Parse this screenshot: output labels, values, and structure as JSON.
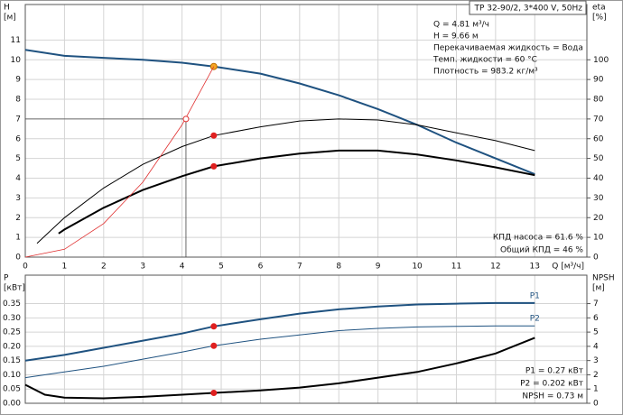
{
  "chart_data": [
    {
      "type": "line",
      "title": "TP 32-90/2, 3*400 V, 50Hz",
      "y_label": [
        "H",
        "[м]"
      ],
      "y2_label": [
        "eta",
        "[%]"
      ],
      "x_label": "Q [м³/ч]",
      "xlim": [
        0,
        14.33
      ],
      "xticks": [
        0,
        1,
        2,
        3,
        4,
        5,
        6,
        7,
        8,
        9,
        10,
        11,
        12,
        13
      ],
      "ylim": [
        0,
        12.8
      ],
      "yticks": [
        0,
        1,
        2,
        3,
        4,
        5,
        6,
        7,
        8,
        9,
        10,
        11
      ],
      "y2lim": [
        0,
        128
      ],
      "y2ticks": [
        0,
        10,
        20,
        30,
        40,
        50,
        60,
        70,
        80,
        90,
        100
      ],
      "grid": true,
      "duty_x": 4.81,
      "notes": [
        "Q = 4.81 м³/ч",
        "H = 9.66 м",
        "Перекачиваемая жидкость = Вода",
        "Темп. жидкости = 60 °C",
        "Плотность = 983.2 кг/м³"
      ],
      "notes_bottom": [
        "КПД насоса = 61.6 %",
        "Общий КПД = 46 %"
      ],
      "guide": {
        "x": 4.1,
        "y": 7,
        "color": "#e03030"
      },
      "series": [
        {
          "color": "#1f5280",
          "width": 2,
          "marker_color": "#f5a623",
          "x": [
            0,
            1,
            2,
            3,
            4,
            4.81,
            6,
            7,
            8,
            9,
            10,
            11,
            12,
            13
          ],
          "values": [
            10.5,
            10.2,
            10.1,
            10.0,
            9.85,
            9.66,
            9.3,
            8.8,
            8.2,
            7.5,
            6.7,
            5.8,
            5.0,
            4.2
          ]
        },
        {
          "color": "#000000",
          "width": 1,
          "axis": "y2",
          "marker_color": "#e02020",
          "x": [
            0.3,
            1,
            2,
            3,
            4,
            4.81,
            6,
            7,
            8,
            9,
            10,
            11,
            12,
            13
          ],
          "values": [
            7,
            20,
            35,
            47,
            56,
            61.6,
            66,
            69,
            70,
            69.5,
            67,
            63,
            59,
            54
          ]
        },
        {
          "color": "#000000",
          "width": 2,
          "axis": "y2",
          "marker_color": "#e02020",
          "x": [
            0.85,
            1,
            2,
            3,
            4,
            4.81,
            6,
            7,
            8,
            9,
            10,
            11,
            12,
            13
          ],
          "values": [
            12,
            14,
            25,
            34,
            41,
            46,
            50,
            52.5,
            54,
            54,
            52,
            49,
            45.5,
            41.5
          ]
        },
        {
          "color": "#e03030",
          "width": 0.8,
          "x": [
            0,
            1,
            2,
            3,
            4,
            4.81
          ],
          "values": [
            0,
            0.4,
            1.7,
            3.8,
            6.7,
            9.66
          ]
        }
      ]
    },
    {
      "type": "line",
      "y_label": [
        "P",
        "[кВт]"
      ],
      "y2_label": [
        "NPSH",
        "[м]"
      ],
      "xlim": [
        0,
        14.33
      ],
      "xticks": [
        0,
        1,
        2,
        3,
        4,
        5,
        6,
        7,
        8,
        9,
        10,
        11,
        12,
        13
      ],
      "ylim": [
        0,
        0.45
      ],
      "yticks": [
        {
          "value": 0,
          "label": "0.00"
        },
        {
          "value": 0.05,
          "label": "0.05"
        },
        {
          "value": 0.1,
          "label": "0.10"
        },
        {
          "value": 0.15,
          "label": "0.15"
        },
        {
          "value": 0.2,
          "label": "0.20"
        },
        {
          "value": 0.25,
          "label": "0.25"
        },
        {
          "value": 0.3,
          "label": "0.30"
        },
        {
          "value": 0.35,
          "label": "0.35"
        }
      ],
      "y2lim": [
        0,
        9
      ],
      "y2ticks": [
        0,
        1,
        2,
        3,
        4,
        5,
        6,
        7
      ],
      "grid": true,
      "duty_x": 4.81,
      "notes_bottom": [
        "P1 = 0.27 кВт",
        "P2 = 0.202 кВт",
        "NPSH = 0.73 м"
      ],
      "series": [
        {
          "name": "P1",
          "color": "#1f5280",
          "width": 2,
          "marker_color": "#e02020",
          "x": [
            0,
            1,
            2,
            3,
            4,
            4.81,
            6,
            7,
            8,
            9,
            10,
            11,
            12,
            13
          ],
          "values": [
            0.15,
            0.17,
            0.195,
            0.22,
            0.245,
            0.27,
            0.295,
            0.315,
            0.33,
            0.34,
            0.347,
            0.35,
            0.352,
            0.352
          ]
        },
        {
          "name": "P2",
          "color": "#1f5280",
          "width": 1,
          "marker_color": "#e02020",
          "x": [
            0,
            1,
            2,
            3,
            4,
            4.81,
            6,
            7,
            8,
            9,
            10,
            11,
            12,
            13
          ],
          "values": [
            0.09,
            0.11,
            0.13,
            0.155,
            0.18,
            0.202,
            0.225,
            0.24,
            0.255,
            0.263,
            0.268,
            0.27,
            0.272,
            0.272
          ]
        },
        {
          "color": "#000000",
          "width": 2,
          "axis": "y2",
          "marker_color": "#e02020",
          "x": [
            0,
            0.5,
            1,
            2,
            3,
            4,
            4.81,
            6,
            7,
            8,
            9,
            10,
            11,
            12,
            13
          ],
          "values": [
            1.3,
            0.6,
            0.4,
            0.35,
            0.45,
            0.6,
            0.73,
            0.9,
            1.1,
            1.4,
            1.8,
            2.2,
            2.8,
            3.5,
            4.6
          ]
        }
      ]
    }
  ]
}
